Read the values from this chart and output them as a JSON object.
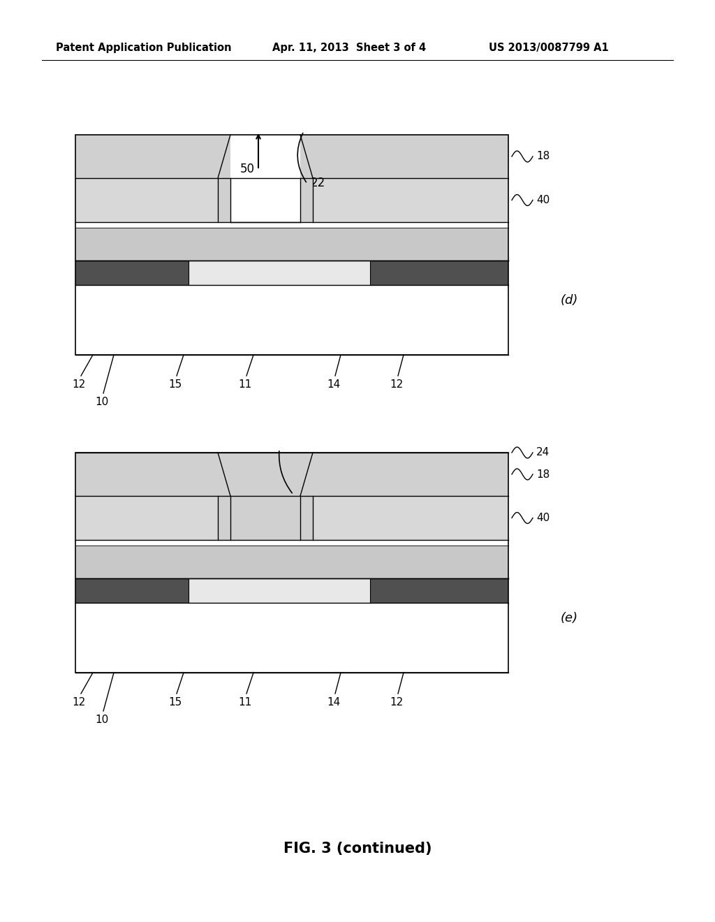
{
  "bg_color": "#ffffff",
  "header_left": "Patent Application Publication",
  "header_mid": "Apr. 11, 2013  Sheet 3 of 4",
  "header_right": "US 2013/0087799 A1",
  "fig_caption": "FIG. 3 (continued)",
  "diagram_d_label": "(d)",
  "diagram_e_label": "(e)",
  "colors": {
    "hatch_layer": "#d0d0d0",
    "oxide_fill": "#d8d8d8",
    "epi_fill": "#c8c8c8",
    "buried_dark": "#505050",
    "buried_light_fill": "#e0e0e0",
    "substrate": "#ffffff",
    "top24_fill": "#d0d0d0",
    "white": "#ffffff",
    "thin_line": "#888888",
    "black": "#000000"
  }
}
